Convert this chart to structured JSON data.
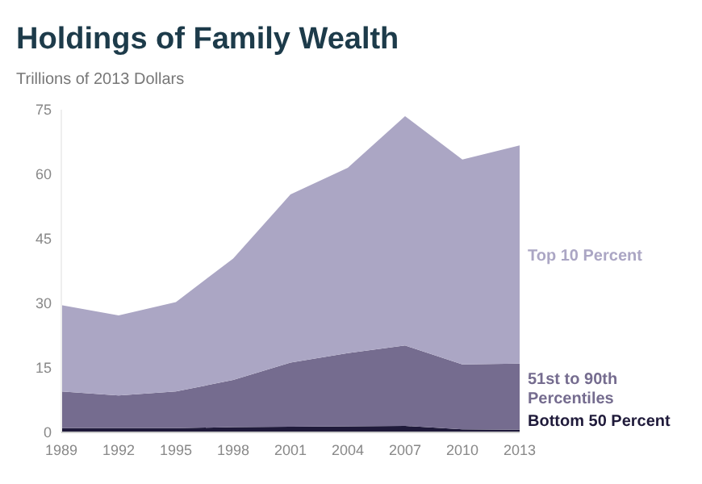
{
  "chart_data": {
    "type": "area",
    "stacked": true,
    "title": "Holdings of Family Wealth",
    "ylabel": "Trillions of 2013 Dollars",
    "x": [
      1989,
      1992,
      1995,
      1998,
      2001,
      2004,
      2007,
      2010,
      2013
    ],
    "series": [
      {
        "name": "Bottom 50 Percent",
        "color": "#1f1a3a",
        "values": [
          1.0,
          1.0,
          1.0,
          1.2,
          1.3,
          1.4,
          1.5,
          0.7,
          0.6
        ]
      },
      {
        "name": "51st to 90th Percentiles",
        "color": "#756c8f",
        "values": [
          8.5,
          7.6,
          8.5,
          11.0,
          14.9,
          17.0,
          18.7,
          15.1,
          15.4
        ]
      },
      {
        "name": "Top 10 Percent",
        "color": "#aba6c4",
        "values": [
          20.1,
          18.6,
          20.8,
          28.2,
          39.1,
          43.1,
          53.3,
          47.6,
          50.7
        ]
      }
    ],
    "xlim": [
      1989,
      2013
    ],
    "xticks": [
      1989,
      1992,
      1995,
      1998,
      2001,
      2004,
      2007,
      2010,
      2013
    ],
    "ylim": [
      0,
      75
    ],
    "yticks": [
      0,
      15,
      30,
      45,
      60,
      75
    ],
    "grid": false
  }
}
